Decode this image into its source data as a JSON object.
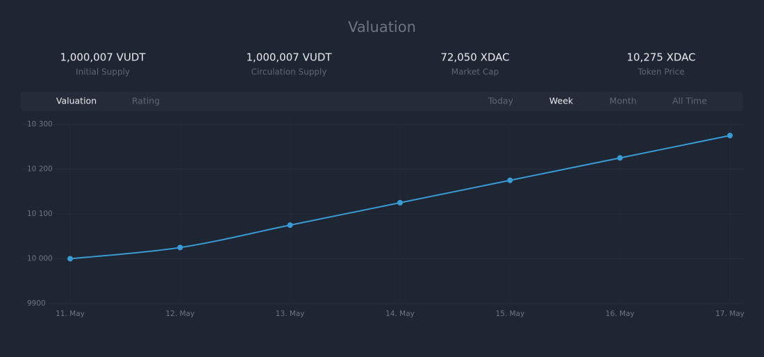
{
  "title": "Valuation",
  "stats": [
    {
      "value": "1,000,007 VUDT",
      "label": "Initial Supply"
    },
    {
      "value": "1,000,007 VUDT",
      "label": "Circulation Supply"
    },
    {
      "value": "72,050 XDAC",
      "label": "Market Cap"
    },
    {
      "value": "10,275 XDAC",
      "label": "Token Price"
    }
  ],
  "tabs": [
    "Valuation",
    "Rating"
  ],
  "active_tab": 0,
  "ranges": [
    "Today",
    "Week",
    "Month",
    "All Time"
  ],
  "active_range": 1,
  "chart_data": {
    "type": "line",
    "categories": [
      "11. May",
      "12. May",
      "13. May",
      "14. May",
      "15. May",
      "16. May",
      "17. May"
    ],
    "values": [
      10000,
      10025,
      10075,
      10125,
      10175,
      10225,
      10275
    ],
    "color": "#3a9bd5",
    "ylim": [
      9900,
      10300
    ],
    "yticks": [
      9900,
      {
        "value": 10000,
        "label": "10 000"
      },
      {
        "value": 10100,
        "label": "10 100"
      },
      {
        "value": 10200,
        "label": "10 200"
      },
      {
        "value": 10300,
        "label": "10 300"
      }
    ],
    "smooth": true
  }
}
